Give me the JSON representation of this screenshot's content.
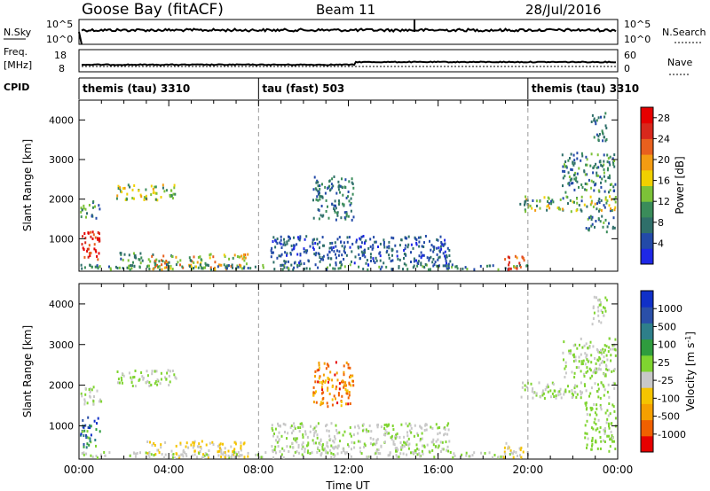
{
  "header": {
    "station": "Goose Bay (fitACF)",
    "beam": "Beam 11",
    "date": "28/Jul/2016"
  },
  "nsky_panel": {
    "left_label": "N.Sky",
    "right_label": "N.Search",
    "left_ticks": [
      "10^5",
      "10^0"
    ],
    "right_ticks": [
      "10^5",
      "10^0"
    ]
  },
  "freq_panel": {
    "left_label_line1": "Freq.",
    "left_label_line2": "[MHz]",
    "right_label": "Nave",
    "left_ticks": [
      "18",
      "8"
    ],
    "right_ticks": [
      "60",
      "0"
    ]
  },
  "cpid_panel": {
    "label": "CPID",
    "segments": [
      {
        "name": "themis (tau) 3310",
        "start": 0,
        "end": 8
      },
      {
        "name": "tau (fast) 503",
        "start": 8,
        "end": 20
      },
      {
        "name": "themis (tau) 3310",
        "start": 20,
        "end": 24
      }
    ]
  },
  "colors": {
    "power": [
      "#1e28e6",
      "#234aa8",
      "#2f6f6a",
      "#3a8c5a",
      "#7cc238",
      "#f0d000",
      "#f39c12",
      "#e8601e",
      "#d8281c",
      "#e60000"
    ],
    "velocity": [
      "#e60000",
      "#f06000",
      "#f5a000",
      "#f5c400",
      "#c8c8c8",
      "#7fd430",
      "#2f9c3e",
      "#2e7f8a",
      "#2a4fa8",
      "#1030c8"
    ]
  },
  "chart_data": [
    {
      "type": "heatmap",
      "name": "power",
      "ylabel": "Slant Range [km]",
      "xlabel": "",
      "x_ticks": [
        "00:00",
        "04:00",
        "08:00",
        "12:00",
        "16:00",
        "20:00",
        "00:00"
      ],
      "y_ticks": [
        "1000",
        "2000",
        "3000",
        "4000"
      ],
      "xlim": [
        0,
        24
      ],
      "ylim": [
        180,
        4500
      ],
      "colorbar_label": "Power [dB]",
      "colorbar_ticks": [
        "4",
        "8",
        "12",
        "16",
        "20",
        "24",
        "28"
      ],
      "colorbar_range": [
        0,
        30
      ],
      "regions": [
        {
          "t0": 0.0,
          "t1": 0.9,
          "r0": 500,
          "r1": 1250,
          "v0": 22,
          "v1": 30
        },
        {
          "t0": 0.0,
          "t1": 1.0,
          "r0": 1550,
          "r1": 2000,
          "v0": 4,
          "v1": 16
        },
        {
          "t0": 1.6,
          "t1": 4.3,
          "r0": 2000,
          "r1": 2400,
          "v0": 8,
          "v1": 20
        },
        {
          "t0": 1.8,
          "t1": 2.9,
          "r0": 250,
          "r1": 700,
          "v0": 4,
          "v1": 14
        },
        {
          "t0": 3.0,
          "t1": 7.5,
          "r0": 250,
          "r1": 650,
          "v0": 8,
          "v1": 24
        },
        {
          "t0": 0.0,
          "t1": 20.0,
          "r0": 200,
          "r1": 380,
          "v0": 4,
          "v1": 14
        },
        {
          "t0": 10.4,
          "t1": 12.2,
          "r0": 1500,
          "r1": 2600,
          "v0": 4,
          "v1": 12
        },
        {
          "t0": 8.5,
          "t1": 16.5,
          "r0": 350,
          "r1": 1100,
          "v0": 2,
          "v1": 8
        },
        {
          "t0": 18.8,
          "t1": 19.8,
          "r0": 250,
          "r1": 600,
          "v0": 20,
          "v1": 28
        },
        {
          "t0": 19.6,
          "t1": 24.0,
          "r0": 1700,
          "r1": 2100,
          "v0": 4,
          "v1": 20
        },
        {
          "t0": 21.5,
          "t1": 24.0,
          "r0": 2200,
          "r1": 3200,
          "v0": 4,
          "v1": 14
        },
        {
          "t0": 22.5,
          "t1": 24.0,
          "r0": 1200,
          "r1": 1600,
          "v0": 4,
          "v1": 14
        },
        {
          "t0": 22.8,
          "t1": 23.5,
          "r0": 3500,
          "r1": 4200,
          "v0": 4,
          "v1": 10
        }
      ]
    },
    {
      "type": "heatmap",
      "name": "velocity",
      "ylabel": "Slant Range [km]",
      "xlabel": "Time UT",
      "x_ticks": [
        "00:00",
        "04:00",
        "08:00",
        "12:00",
        "16:00",
        "20:00",
        "00:00"
      ],
      "y_ticks": [
        "1000",
        "2000",
        "3000",
        "4000"
      ],
      "xlim": [
        0,
        24
      ],
      "ylim": [
        180,
        4500
      ],
      "colorbar_label": "Velocity [m s^-1]",
      "colorbar_ticks": [
        "-1000",
        "-500",
        "-100",
        "-25",
        "25",
        "100",
        "500",
        "1000"
      ],
      "colorbar_range": [
        -1000,
        1000
      ],
      "regions": [
        {
          "t0": 0.0,
          "t1": 0.9,
          "r0": 500,
          "r1": 1250,
          "v0": 100,
          "v1": 1000
        },
        {
          "t0": 0.0,
          "t1": 1.0,
          "r0": 1550,
          "r1": 2000,
          "v0": -25,
          "v1": 25
        },
        {
          "t0": 1.6,
          "t1": 4.3,
          "r0": 2000,
          "r1": 2400,
          "v0": -25,
          "v1": 25
        },
        {
          "t0": 3.0,
          "t1": 7.5,
          "r0": 250,
          "r1": 650,
          "v0": -400,
          "v1": -40
        },
        {
          "t0": 0.0,
          "t1": 20.0,
          "r0": 200,
          "r1": 380,
          "v0": -200,
          "v1": 100
        },
        {
          "t0": 10.4,
          "t1": 12.2,
          "r0": 1500,
          "r1": 2600,
          "v0": -900,
          "v1": -300
        },
        {
          "t0": 8.5,
          "t1": 16.5,
          "r0": 350,
          "r1": 1100,
          "v0": -200,
          "v1": 150
        },
        {
          "t0": 18.8,
          "t1": 19.8,
          "r0": 250,
          "r1": 600,
          "v0": -300,
          "v1": -80
        },
        {
          "t0": 19.6,
          "t1": 24.0,
          "r0": 1700,
          "r1": 2100,
          "v0": -25,
          "v1": 25
        },
        {
          "t0": 21.5,
          "t1": 24.0,
          "r0": 2200,
          "r1": 3200,
          "v0": -25,
          "v1": 25
        },
        {
          "t0": 22.5,
          "t1": 24.0,
          "r0": 400,
          "r1": 1600,
          "v0": -25,
          "v1": 120
        },
        {
          "t0": 22.8,
          "t1": 23.5,
          "r0": 3500,
          "r1": 4200,
          "v0": -25,
          "v1": 25
        }
      ]
    }
  ]
}
